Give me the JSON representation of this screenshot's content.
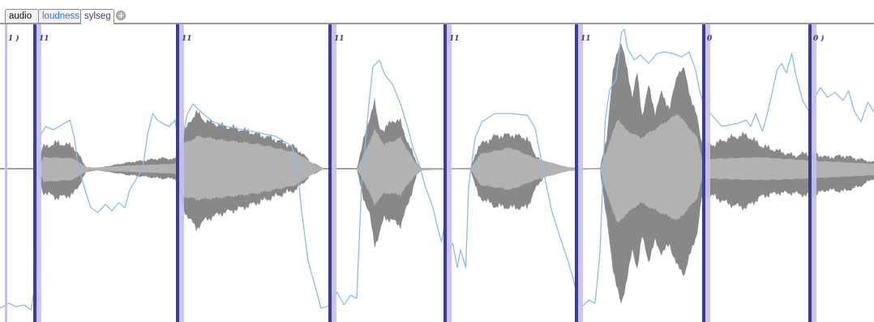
{
  "tabs": [
    {
      "label": "audio",
      "active": false,
      "color": "#111111"
    },
    {
      "label": "loudness",
      "active": false,
      "color": "#3a6fd8"
    },
    {
      "label": "sylseg",
      "active": true,
      "color": "#3a3a8c"
    }
  ],
  "add_tab_icon": "plus-circle-icon",
  "colors": {
    "boundary": "#3c3c9c",
    "boundary_shadow": "#c9bfe4",
    "loudness": "#8cbce6",
    "envelope_dark": "#888888",
    "envelope_light": "#b2b2b2",
    "baseline": "#808080"
  },
  "segments": [
    {
      "label": "1 )"
    },
    {
      "label": "11"
    },
    {
      "label": "11"
    },
    {
      "label": "11"
    },
    {
      "label": "11"
    },
    {
      "label": "11"
    },
    {
      "label": "0"
    },
    {
      "label": "0 )"
    }
  ]
}
